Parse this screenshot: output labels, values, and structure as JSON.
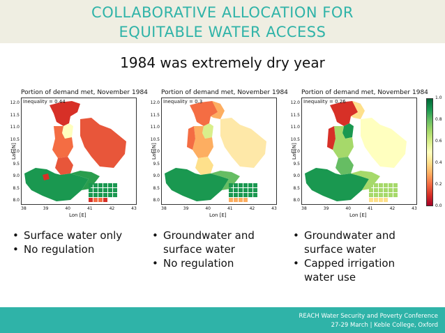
{
  "slide": {
    "title_line1": "COLLABORATIVE ALLOCATION FOR",
    "title_line2": "EQUITABLE WATER ACCESS",
    "subtitle": "1984 was extremely dry year"
  },
  "panels": [
    {
      "title": "Portion of demand met, November 1984",
      "inequality": "Inequality = 0.44",
      "xlabel": "Lon [E]",
      "ylabel": "Lat [N]",
      "bullets": [
        "Surface water only",
        "No regulation"
      ]
    },
    {
      "title": "Portion of demand met, November 1984",
      "inequality": "Inequality = 0.3",
      "xlabel": "Lon [E]",
      "ylabel": "Lat [N]",
      "bullets": [
        "Groundwater and surface water",
        "No regulation"
      ]
    },
    {
      "title": "Portion of demand met, November 1984",
      "inequality": "Inequality = 0.26",
      "xlabel": "Lon [E]",
      "ylabel": "Lat [N]",
      "bullets": [
        "Groundwater and surface water",
        "Capped irrigation water use"
      ]
    }
  ],
  "axes": {
    "yticks": [
      "12.0",
      "11.5",
      "11.0",
      "10.5",
      "10.0",
      "9.5",
      "9.0",
      "8.5",
      "8.0"
    ],
    "xticks": [
      "38",
      "39",
      "40",
      "41",
      "42",
      "43"
    ]
  },
  "colorbar": {
    "ticks": [
      "1.0",
      "0.8",
      "0.6",
      "0.4",
      "0.2",
      "0.0"
    ],
    "colors": [
      "#a50026",
      "#d73027",
      "#f46d43",
      "#fdae61",
      "#fee08b",
      "#ffffbf",
      "#d9ef8b",
      "#a6d96a",
      "#66bd63",
      "#1a9850",
      "#006837"
    ]
  },
  "footer": {
    "line1": "REACH Water Security and Poverty Conference",
    "line2": "27-29 March | Keble College, Oxford"
  }
}
